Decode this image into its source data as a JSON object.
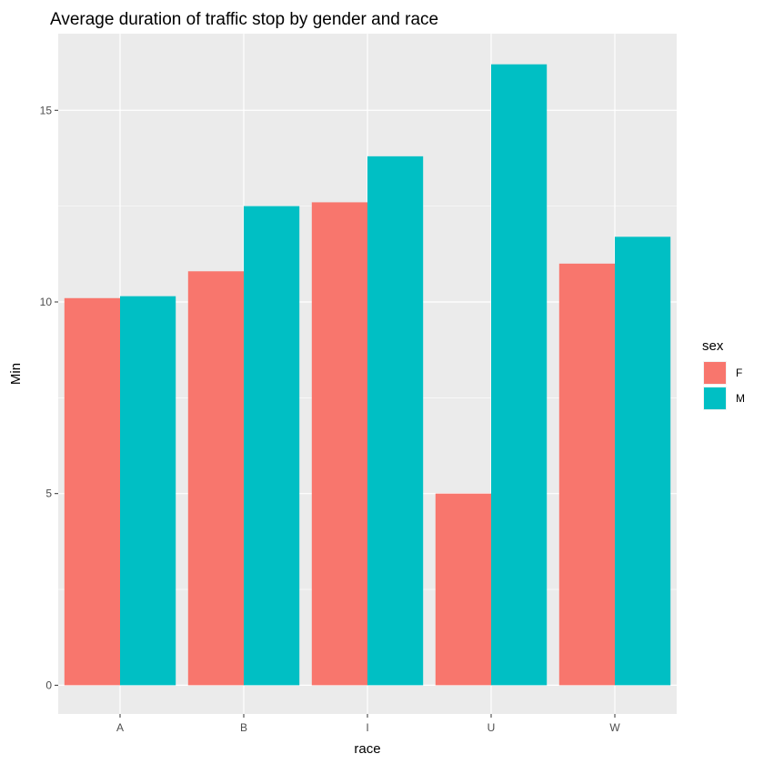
{
  "chart_data": {
    "type": "bar",
    "title": "Average duration of traffic stop by gender and race",
    "xlabel": "race",
    "ylabel": "Min",
    "categories": [
      "A",
      "B",
      "I",
      "U",
      "W"
    ],
    "series": [
      {
        "name": "F",
        "color": "#F8766D",
        "values": [
          10.1,
          10.8,
          12.6,
          5.0,
          11.0
        ]
      },
      {
        "name": "M",
        "color": "#00BFC4",
        "values": [
          10.15,
          12.5,
          13.8,
          16.2,
          11.7
        ]
      }
    ],
    "ylim": [
      -0.75,
      17.0
    ],
    "yticks": [
      0,
      5,
      10,
      15
    ],
    "ytick_labels": [
      "0",
      "5",
      "10",
      "15"
    ],
    "grid": true,
    "legend": {
      "title": "sex",
      "placement": "right"
    },
    "panel_background": "#EBEBEB",
    "grid_color": "#FFFFFF"
  }
}
